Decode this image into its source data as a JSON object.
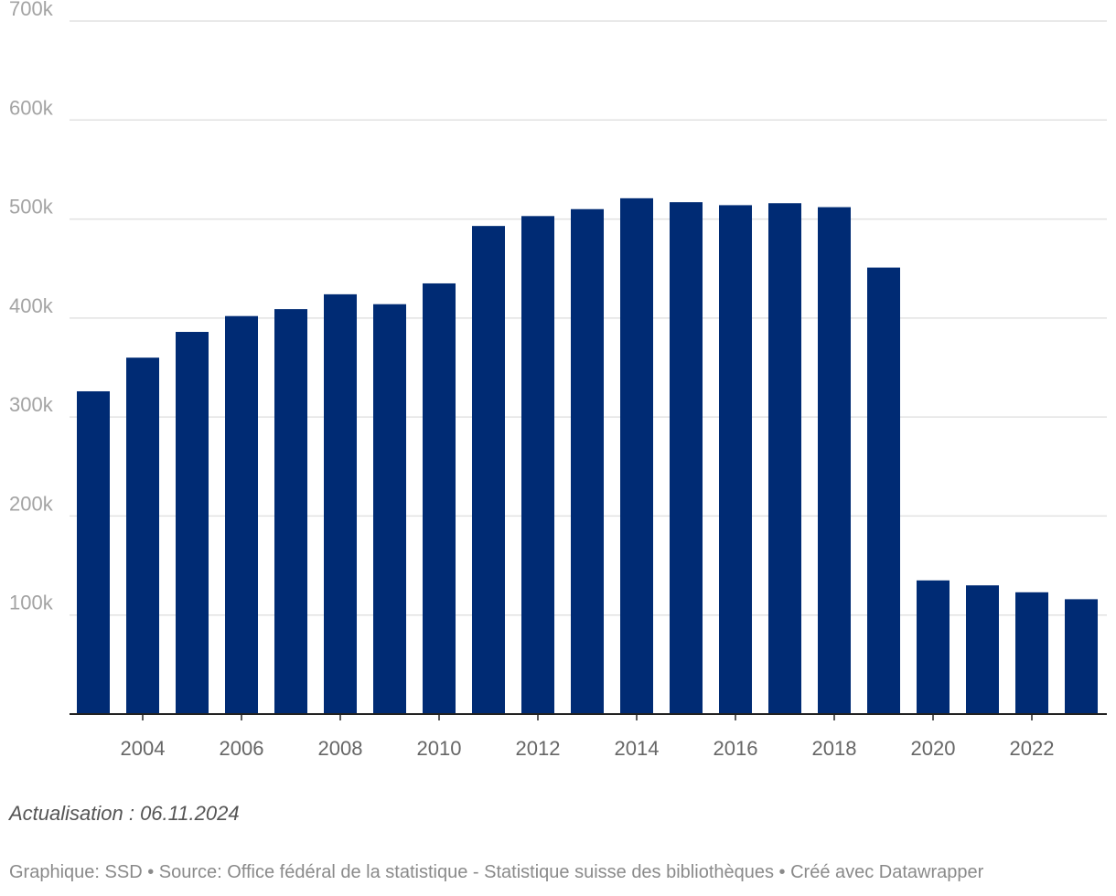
{
  "chart_data": {
    "type": "bar",
    "x": [
      2003,
      2004,
      2005,
      2006,
      2007,
      2008,
      2009,
      2010,
      2011,
      2012,
      2013,
      2014,
      2015,
      2016,
      2017,
      2018,
      2019,
      2020,
      2021,
      2022,
      2023
    ],
    "values": [
      326000,
      360000,
      386000,
      402000,
      409000,
      424000,
      414000,
      435000,
      493000,
      503000,
      510000,
      521000,
      517000,
      514000,
      516000,
      512000,
      451000,
      135000,
      130000,
      123000,
      116000
    ],
    "xticks": [
      2004,
      2006,
      2008,
      2010,
      2012,
      2014,
      2016,
      2018,
      2020,
      2022
    ],
    "yticks": [
      {
        "value": 100000,
        "label": "100k"
      },
      {
        "value": 200000,
        "label": "200k"
      },
      {
        "value": 300000,
        "label": "300k"
      },
      {
        "value": 400000,
        "label": "400k"
      },
      {
        "value": 500000,
        "label": "500k"
      },
      {
        "value": 600000,
        "label": "600k"
      },
      {
        "value": 700000,
        "label": "700k"
      }
    ],
    "ylim": [
      0,
      700000
    ],
    "grid": true,
    "bar_color": "#002b74",
    "gridline_color": "#e2e2e2",
    "axis_color": "#222222"
  },
  "notes": {
    "update": "Actualisation : 06.11.2024",
    "footer": "Graphique: SSD • Source: Office fédéral de la statistique - Statistique suisse des bibliothèques • Créé avec Datawrapper"
  }
}
